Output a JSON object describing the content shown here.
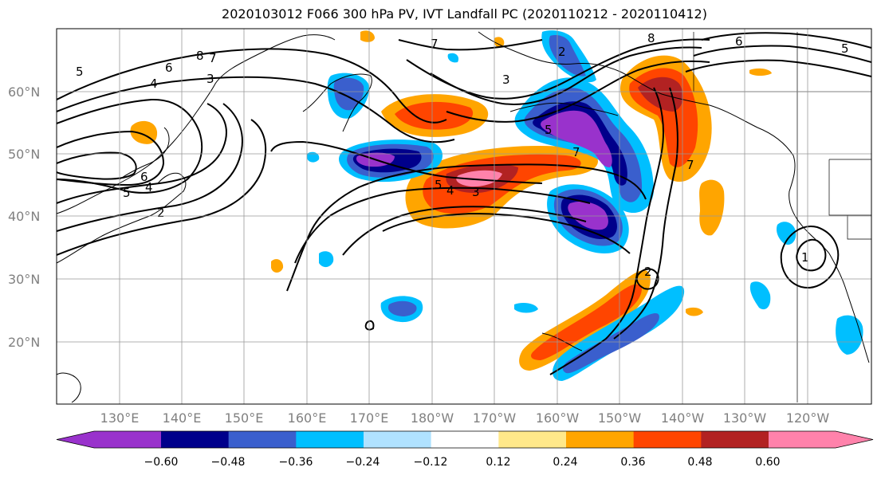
{
  "title": "2020103012 F066 300 hPa PV, IVT Landfall PC (2020110212 - 2020110412)",
  "map": {
    "lat_labels": [
      "60°N",
      "50°N",
      "40°N",
      "30°N",
      "20°N"
    ],
    "lon_labels": [
      "130°E",
      "140°E",
      "150°E",
      "160°E",
      "170°E",
      "180°W",
      "170°W",
      "160°W",
      "150°W",
      "140°W",
      "130°W",
      "120°W"
    ],
    "contour_labels": [
      "4",
      "5",
      "6",
      "8",
      "7",
      "3",
      "6",
      "5",
      "4",
      "2",
      "5",
      "4",
      "3",
      "7",
      "5",
      "2",
      "8",
      "6",
      "5",
      "7",
      "1",
      "2",
      "3",
      "7"
    ]
  },
  "colorbar": {
    "tick_labels": [
      "−0.60",
      "−0.48",
      "−0.36",
      "−0.24",
      "−0.12",
      "0.12",
      "0.24",
      "0.36",
      "0.48",
      "0.60"
    ],
    "colors": [
      "#9932cc",
      "#00008b",
      "#3a5fcd",
      "#00bfff",
      "#b0e2ff",
      "#ffffff",
      "#ffe88a",
      "#ffa500",
      "#ff4500",
      "#b22222",
      "#ff82ab"
    ]
  }
}
